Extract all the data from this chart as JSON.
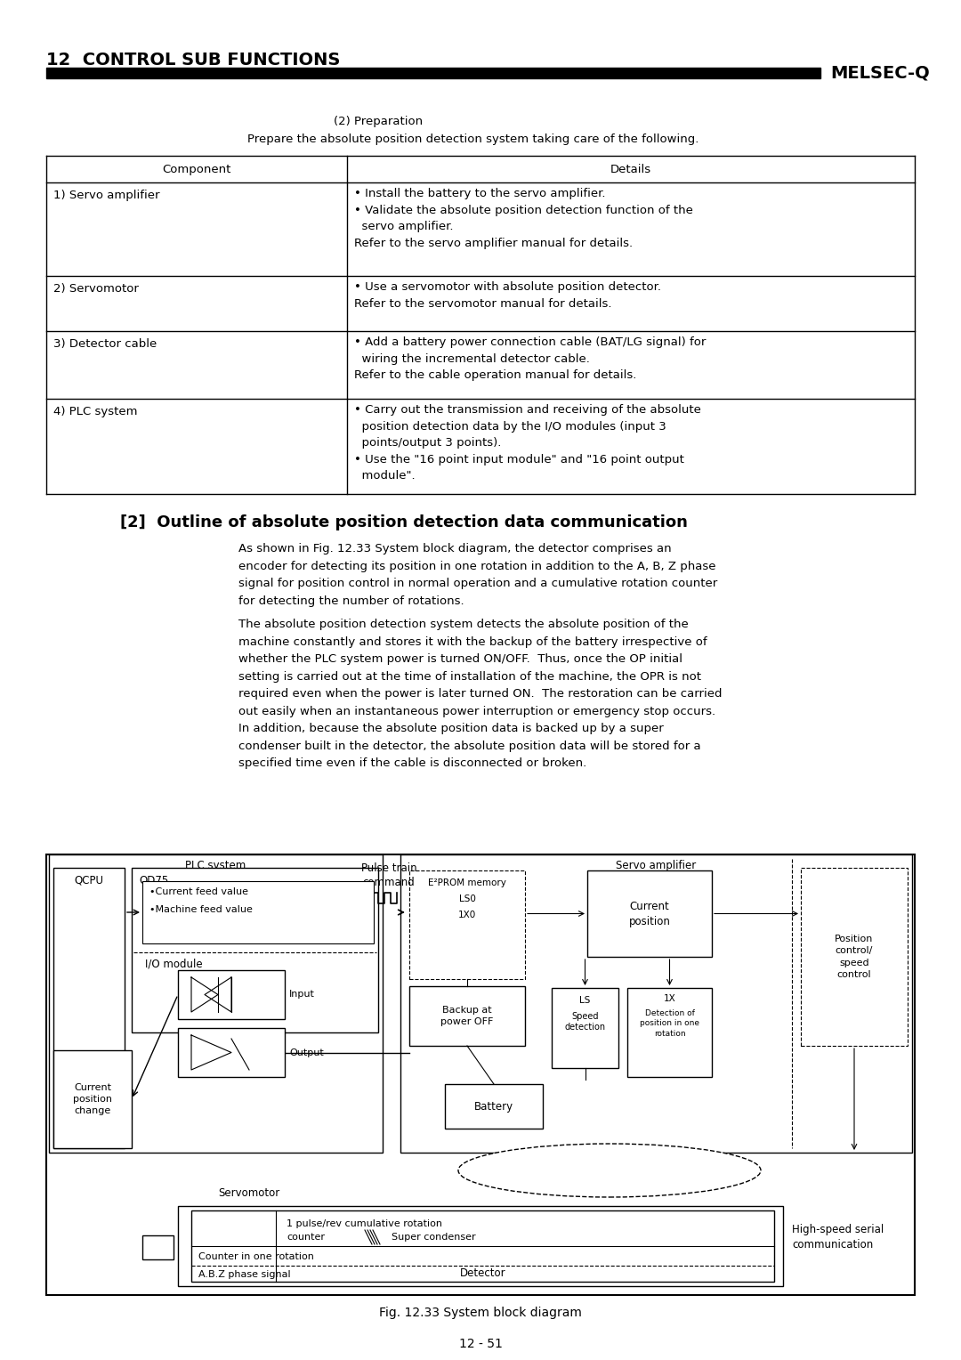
{
  "title_left": "12  CONTROL SUB FUNCTIONS",
  "title_right": "MELSEC-Q",
  "section_title": "(2) Preparation",
  "section_subtitle": "Prepare the absolute position detection system taking care of the following.",
  "table_headers": [
    "Component",
    "Details"
  ],
  "table_rows": [
    {
      "component": "1) Servo amplifier",
      "details": "• Install the battery to the servo amplifier.\n• Validate the absolute position detection function of the\n  servo amplifier.\nRefer to the servo amplifier manual for details."
    },
    {
      "component": "2) Servomotor",
      "details": "• Use a servomotor with absolute position detector.\nRefer to the servomotor manual for details."
    },
    {
      "component": "3) Detector cable",
      "details": "• Add a battery power connection cable (BAT/LG signal) for\n  wiring the incremental detector cable.\nRefer to the cable operation manual for details."
    },
    {
      "component": "4) PLC system",
      "details": "• Carry out the transmission and receiving of the absolute\n  position detection data by the I/O modules (input 3\n  points/output 3 points).\n• Use the \"16 point input module\" and \"16 point output\n  module\"."
    }
  ],
  "section2_title": "[2]  Outline of absolute position detection data communication",
  "para1": "As shown in Fig. 12.33 System block diagram, the detector comprises an\nencoder for detecting its position in one rotation in addition to the A, B, Z phase\nsignal for position control in normal operation and a cumulative rotation counter\nfor detecting the number of rotations.",
  "para2": "The absolute position detection system detects the absolute position of the\nmachine constantly and stores it with the backup of the battery irrespective of\nwhether the PLC system power is turned ON/OFF.  Thus, once the OP initial\nsetting is carried out at the time of installation of the machine, the OPR is not\nrequired even when the power is later turned ON.  The restoration can be carried\nout easily when an instantaneous power interruption or emergency stop occurs.\nIn addition, because the absolute position data is backed up by a super\ncondenser built in the detector, the absolute position data will be stored for a\nspecified time even if the cable is disconnected or broken.",
  "fig_caption": "Fig. 12.33 System block diagram",
  "page_number": "12 - 51",
  "bg_color": "#ffffff",
  "text_color": "#000000"
}
